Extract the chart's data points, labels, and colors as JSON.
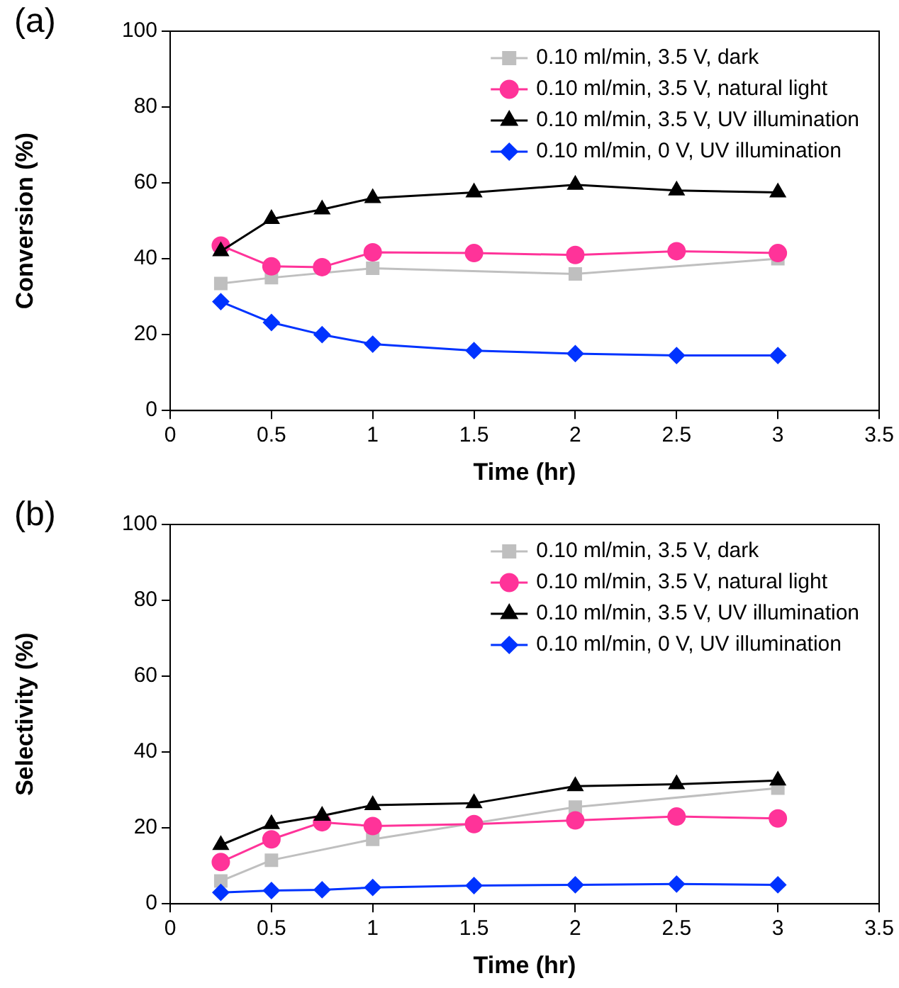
{
  "chart_data": [
    {
      "type": "line",
      "title": "(a)",
      "xlabel": "Time (hr)",
      "ylabel": "Conversion (%)",
      "xlim": [
        0,
        3.5
      ],
      "xticks": [
        0,
        0.5,
        1,
        1.5,
        2,
        2.5,
        3,
        3.5
      ],
      "ylim": [
        0,
        100
      ],
      "yticks": [
        0,
        20,
        40,
        60,
        80,
        100
      ],
      "grid": false,
      "legend": "top right",
      "x": [
        0.25,
        0.5,
        0.75,
        1,
        1.5,
        2,
        2.5,
        3
      ],
      "series": [
        {
          "name": "0.10 ml/min, 3.5 V, dark",
          "color": "#bfbfbf",
          "marker": "square",
          "values": [
            33.5,
            35,
            null,
            37.5,
            null,
            36,
            null,
            40
          ]
        },
        {
          "name": "0.10 ml/min, 3.5 V, natural light",
          "color": "#ff3399",
          "marker": "circle",
          "values": [
            43.5,
            38,
            37.8,
            41.7,
            41.5,
            41,
            42,
            41.5
          ]
        },
        {
          "name": "0.10 ml/min, 3.5 V, UV illumination",
          "color": "#000000",
          "marker": "triangle",
          "values": [
            42,
            50.5,
            53,
            56,
            57.5,
            59.5,
            58,
            57.5
          ]
        },
        {
          "name": "0.10 ml/min, 0 V, UV illumination",
          "color": "#0033ff",
          "marker": "diamond",
          "values": [
            28.7,
            23.2,
            20,
            17.5,
            15.8,
            15,
            14.5,
            14.5
          ]
        }
      ]
    },
    {
      "type": "line",
      "title": "(b)",
      "xlabel": "Time (hr)",
      "ylabel": "Selectivity (%)",
      "xlim": [
        0,
        3.5
      ],
      "xticks": [
        0,
        0.5,
        1,
        1.5,
        2,
        2.5,
        3,
        3.5
      ],
      "ylim": [
        0,
        100
      ],
      "yticks": [
        0,
        20,
        40,
        60,
        80,
        100
      ],
      "grid": false,
      "legend": "top right",
      "x": [
        0.25,
        0.5,
        0.75,
        1,
        1.5,
        2,
        2.5,
        3
      ],
      "series": [
        {
          "name": "0.10 ml/min, 3.5 V, dark",
          "color": "#bfbfbf",
          "marker": "square",
          "values": [
            6,
            11.5,
            null,
            17,
            null,
            25.5,
            null,
            30.5
          ]
        },
        {
          "name": "0.10 ml/min, 3.5 V, natural light",
          "color": "#ff3399",
          "marker": "circle",
          "values": [
            11,
            17,
            21.5,
            20.5,
            21,
            22,
            23,
            22.5
          ]
        },
        {
          "name": "0.10 ml/min, 3.5 V, UV illumination",
          "color": "#000000",
          "marker": "triangle",
          "values": [
            15.5,
            21,
            23.2,
            26,
            26.5,
            31,
            31.5,
            32.5
          ]
        },
        {
          "name": "0.10 ml/min, 0 V, UV illumination",
          "color": "#0033ff",
          "marker": "diamond",
          "values": [
            3,
            3.5,
            3.7,
            4.3,
            4.8,
            5,
            5.2,
            5
          ]
        }
      ]
    }
  ]
}
